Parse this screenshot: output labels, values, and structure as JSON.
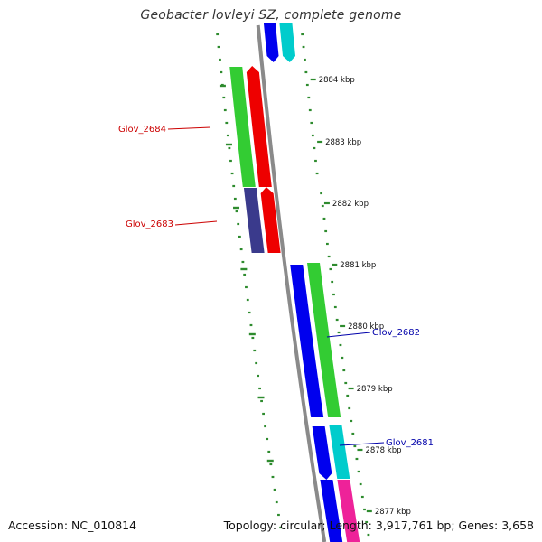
{
  "title": "Geobacter lovleyi SZ, complete genome",
  "footer": {
    "accession": "Accession: NC_010814",
    "summary": "Topology: circular; Length: 3,917,761 bp; Genes: 3,658"
  },
  "colors": {
    "background": "#ffffff",
    "backbone": "#8a8a8a",
    "gc_skew_ticks": "#2e8b2e",
    "forward_label": "#cc0000",
    "reverse_label": "#0000aa",
    "blue_gene": "#0000ee",
    "cyan_gene": "#00cccc",
    "green_gene": "#33cc33",
    "red_gene": "#ee0000",
    "navy_gene": "#3a3a8c",
    "pink_gene": "#ee2299"
  },
  "kbp_ticks": [
    {
      "label": "2884 kbp"
    },
    {
      "label": "2883 kbp"
    },
    {
      "label": "2882 kbp"
    },
    {
      "label": "2881 kbp"
    },
    {
      "label": "2880 kbp"
    },
    {
      "label": "2879 kbp"
    },
    {
      "label": "2878 kbp"
    },
    {
      "label": "2877 kbp"
    }
  ],
  "gene_labels": [
    {
      "name": "Glov_2684",
      "strand": "forward"
    },
    {
      "name": "Glov_2683",
      "strand": "forward"
    },
    {
      "name": "Glov_2682",
      "strand": "reverse"
    },
    {
      "name": "Glov_2681",
      "strand": "reverse"
    }
  ]
}
